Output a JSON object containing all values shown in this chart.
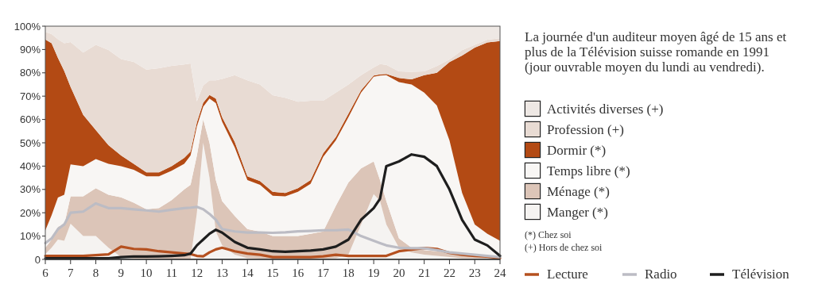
{
  "chart_data": {
    "type": "area",
    "stacked": true,
    "title": "La journée d'un auditeur moyen âgé de 15 ans et plus de la Télévision suisse romande en 1991 (jour ouvrable moyen du lundi au vendredi).",
    "legend": "right",
    "xlim": [
      6,
      24
    ],
    "ylim": [
      0,
      100
    ],
    "xticks": [
      6,
      7,
      8,
      9,
      10,
      11,
      12,
      13,
      14,
      15,
      16,
      17,
      18,
      19,
      20,
      21,
      22,
      23,
      24
    ],
    "yticks": [
      0,
      {
        "value": 10,
        "label": "10%"
      },
      {
        "value": 20,
        "label": "20%"
      },
      {
        "value": 30,
        "label": "30%"
      },
      {
        "value": 40,
        "label": "40%"
      },
      {
        "value": 50,
        "label": "50%"
      },
      {
        "value": 60,
        "label": "60%"
      },
      {
        "value": 70,
        "label": "70%"
      },
      {
        "value": 80,
        "label": "80%"
      },
      {
        "value": 90,
        "label": "90%"
      },
      {
        "value": 100,
        "label": "100%"
      }
    ],
    "x": [
      6,
      6.25,
      6.5,
      6.75,
      7,
      7.5,
      8,
      8.5,
      9,
      9.5,
      10,
      10.5,
      11,
      11.5,
      11.75,
      12,
      12.25,
      12.5,
      12.75,
      13,
      13.5,
      14,
      14.5,
      15,
      15.5,
      16,
      16.5,
      17,
      17.5,
      18,
      18.5,
      19,
      19.25,
      19.5,
      20,
      20.5,
      21,
      21.5,
      22,
      22.5,
      23,
      23.5,
      24
    ],
    "series": [
      {
        "name": "Manger (*)",
        "color": "#f5f3f1",
        "values": [
          2.3,
          5,
          8.5,
          8,
          15.3,
          10,
          10,
          5,
          1,
          0.3,
          0,
          0,
          0,
          0,
          0,
          20,
          50,
          35,
          12,
          6,
          2,
          0.5,
          0.3,
          0.3,
          0.3,
          0.3,
          0.3,
          0.3,
          0.5,
          2,
          15,
          28,
          25,
          15,
          5,
          3,
          2,
          1.5,
          1,
          0.5,
          0.5,
          0.3,
          0
        ]
      },
      {
        "name": "Ménage (*)",
        "color": "#dcc5b8",
        "values": [
          2.7,
          3.5,
          5.5,
          7,
          11.7,
          17,
          20.5,
          22.7,
          25.6,
          24,
          21.5,
          22,
          25.4,
          30,
          32,
          24.6,
          10,
          15,
          22,
          19,
          16.6,
          12.5,
          11.6,
          9.7,
          9.7,
          9.7,
          10.7,
          11.7,
          22.5,
          31,
          24,
          14,
          9,
          10,
          4,
          2,
          2,
          2,
          2,
          1.5,
          1,
          0.7,
          0.5
        ]
      },
      {
        "name": "Temps libre (*)",
        "color": "#f8f6f4",
        "values": [
          7.4,
          10.5,
          12.5,
          12.7,
          13.7,
          13,
          12.5,
          13.3,
          13.4,
          14.1,
          14.1,
          13.6,
          12.6,
          11,
          12.6,
          12.4,
          5.5,
          19,
          33,
          34,
          29.4,
          21,
          20.1,
          17.3,
          17,
          19,
          21.4,
          32,
          28,
          28,
          32.5,
          36.3,
          44.8,
          54,
          67,
          70,
          67.5,
          62.5,
          48,
          26.5,
          13.5,
          10,
          7.5
        ]
      },
      {
        "name": "Dormir (*)",
        "color": "#b34a14",
        "values": [
          81.9,
          73.7,
          59.9,
          53.1,
          33.3,
          22,
          12.4,
          8,
          4.6,
          2.6,
          1.7,
          1.7,
          2,
          2.5,
          1.7,
          1.8,
          1.7,
          1.5,
          2,
          2,
          2.3,
          1.6,
          1.6,
          1.7,
          1.5,
          1.5,
          1.6,
          1.5,
          1.5,
          1.5,
          1,
          0.5,
          0.5,
          0.5,
          1.8,
          2.2,
          7.5,
          14,
          33.6,
          58.9,
          75.8,
          82,
          85.6
        ]
      },
      {
        "name": "Profession (+)",
        "color": "#e8dbd3",
        "values": [
          3.2,
          3.9,
          8,
          11.9,
          19.2,
          26.7,
          36.6,
          40.8,
          41.3,
          43.7,
          44.1,
          44.7,
          43,
          40.1,
          37.7,
          9,
          7.4,
          6.3,
          7.8,
          16.4,
          28.7,
          41.2,
          41.4,
          41.4,
          40.8,
          37.1,
          34,
          22.5,
          19,
          12.5,
          6.5,
          3.5,
          4.5,
          3.9,
          2.8,
          3.2,
          1.6,
          2.9,
          1.1,
          2.3,
          1.2,
          1.2,
          1.2
        ]
      },
      {
        "name": "Activités diverses (+)",
        "color": "#eee8e4",
        "values": [
          2.5,
          3.4,
          5.6,
          7.3,
          6.8,
          11.3,
          8,
          10.2,
          14.1,
          15.3,
          18.6,
          18,
          17,
          16.4,
          16,
          32.2,
          25.4,
          23.2,
          23.2,
          22.6,
          21,
          23.2,
          25,
          29.6,
          30.7,
          32.4,
          32,
          32,
          28.5,
          25,
          21,
          17.7,
          16.2,
          16.6,
          19.4,
          19.6,
          19.4,
          17.1,
          14.3,
          10.3,
          8,
          5.8,
          5.2
        ]
      },
      {
        "name": "Lecture",
        "type": "line",
        "color": "#b5501f",
        "values": [
          1.5,
          1.5,
          1.5,
          1.5,
          1.5,
          1.5,
          1.8,
          2.2,
          5.5,
          4.5,
          4.3,
          3.5,
          3,
          2.5,
          2.3,
          1.5,
          1.3,
          3,
          4.3,
          5,
          3.5,
          2.5,
          2,
          1,
          1,
          1,
          1,
          1.3,
          2,
          1.5,
          1.5,
          1.5,
          1.5,
          1.5,
          3.5,
          4.2,
          4.9,
          4.5,
          2.8,
          2,
          1.5,
          1.2,
          0.5
        ]
      },
      {
        "name": "Radio",
        "type": "line",
        "color": "#bcbcc4",
        "values": [
          7,
          9,
          13,
          15,
          20,
          20.5,
          24,
          22,
          22,
          21.5,
          21,
          20.5,
          21.3,
          22,
          22.2,
          22.5,
          21.5,
          19.5,
          17,
          13,
          12,
          11.5,
          11.5,
          11.4,
          11.6,
          12,
          12.2,
          12.5,
          12.5,
          12.8,
          10,
          8,
          7,
          6,
          5,
          4.8,
          4.8,
          4,
          3,
          2.5,
          2,
          1.5,
          1
        ]
      },
      {
        "name": "Télévision",
        "type": "line",
        "color": "#1e1e1e",
        "values": [
          0.5,
          0.5,
          0.5,
          0.5,
          0.5,
          0.5,
          0.5,
          0.5,
          1,
          1.2,
          1.2,
          1.3,
          1.5,
          1.8,
          2.5,
          6,
          8.5,
          11,
          12.7,
          11.5,
          7.5,
          5,
          4.3,
          3.5,
          3.3,
          3.5,
          3.8,
          4.3,
          5.5,
          8.5,
          17,
          22,
          26,
          40,
          42,
          45,
          44,
          40,
          30,
          17,
          8.5,
          6,
          1.5
        ]
      }
    ],
    "annotations": [
      "(*) Chez soi",
      "(+) Hors de chez soi"
    ]
  }
}
